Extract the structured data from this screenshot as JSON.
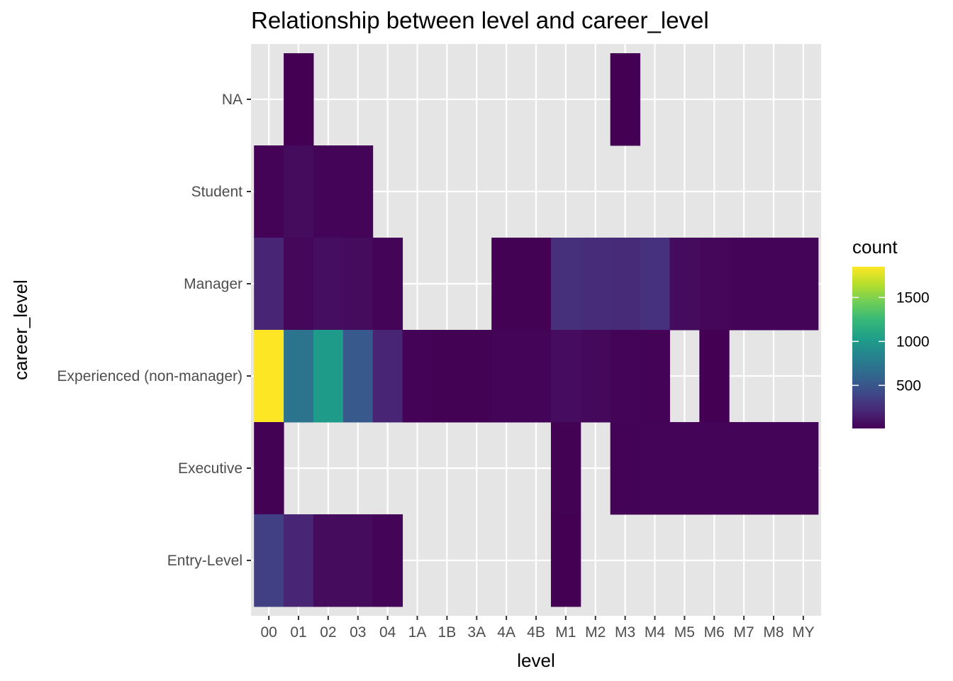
{
  "chart_data": {
    "type": "heatmap",
    "title": "Relationship between level and career_level",
    "xlabel": "level",
    "ylabel": "career_level",
    "x_categories": [
      "00",
      "01",
      "02",
      "03",
      "04",
      "1A",
      "1B",
      "3A",
      "4A",
      "4B",
      "M1",
      "M2",
      "M3",
      "M4",
      "M5",
      "M6",
      "M7",
      "M8",
      "MY"
    ],
    "y_categories": [
      "Entry-Level",
      "Executive",
      "Experienced (non-manager)",
      "Manager",
      "Student",
      "NA"
    ],
    "cells": [
      {
        "x": "01",
        "y": "NA",
        "count": 10
      },
      {
        "x": "M3",
        "y": "NA",
        "count": 10
      },
      {
        "x": "00",
        "y": "Student",
        "count": 20
      },
      {
        "x": "01",
        "y": "Student",
        "count": 60
      },
      {
        "x": "02",
        "y": "Student",
        "count": 30
      },
      {
        "x": "03",
        "y": "Student",
        "count": 25
      },
      {
        "x": "00",
        "y": "Manager",
        "count": 200
      },
      {
        "x": "01",
        "y": "Manager",
        "count": 40
      },
      {
        "x": "02",
        "y": "Manager",
        "count": 80
      },
      {
        "x": "03",
        "y": "Manager",
        "count": 60
      },
      {
        "x": "04",
        "y": "Manager",
        "count": 30
      },
      {
        "x": "4A",
        "y": "Manager",
        "count": 15
      },
      {
        "x": "4B",
        "y": "Manager",
        "count": 15
      },
      {
        "x": "M1",
        "y": "Manager",
        "count": 260
      },
      {
        "x": "M2",
        "y": "Manager",
        "count": 240
      },
      {
        "x": "M3",
        "y": "Manager",
        "count": 230
      },
      {
        "x": "M4",
        "y": "Manager",
        "count": 270
      },
      {
        "x": "M5",
        "y": "Manager",
        "count": 60
      },
      {
        "x": "M6",
        "y": "Manager",
        "count": 40
      },
      {
        "x": "M7",
        "y": "Manager",
        "count": 30
      },
      {
        "x": "M8",
        "y": "Manager",
        "count": 30
      },
      {
        "x": "MY",
        "y": "Manager",
        "count": 25
      },
      {
        "x": "00",
        "y": "Experienced (non-manager)",
        "count": 1850
      },
      {
        "x": "01",
        "y": "Experienced (non-manager)",
        "count": 720
      },
      {
        "x": "02",
        "y": "Experienced (non-manager)",
        "count": 1020
      },
      {
        "x": "03",
        "y": "Experienced (non-manager)",
        "count": 520
      },
      {
        "x": "04",
        "y": "Experienced (non-manager)",
        "count": 200
      },
      {
        "x": "1A",
        "y": "Experienced (non-manager)",
        "count": 20
      },
      {
        "x": "1B",
        "y": "Experienced (non-manager)",
        "count": 15
      },
      {
        "x": "3A",
        "y": "Experienced (non-manager)",
        "count": 15
      },
      {
        "x": "4A",
        "y": "Experienced (non-manager)",
        "count": 25
      },
      {
        "x": "4B",
        "y": "Experienced (non-manager)",
        "count": 25
      },
      {
        "x": "M1",
        "y": "Experienced (non-manager)",
        "count": 70
      },
      {
        "x": "M2",
        "y": "Experienced (non-manager)",
        "count": 50
      },
      {
        "x": "M3",
        "y": "Experienced (non-manager)",
        "count": 30
      },
      {
        "x": "M4",
        "y": "Experienced (non-manager)",
        "count": 20
      },
      {
        "x": "M6",
        "y": "Experienced (non-manager)",
        "count": 10
      },
      {
        "x": "00",
        "y": "Executive",
        "count": 15
      },
      {
        "x": "M1",
        "y": "Executive",
        "count": 15
      },
      {
        "x": "M3",
        "y": "Executive",
        "count": 20
      },
      {
        "x": "M4",
        "y": "Executive",
        "count": 25
      },
      {
        "x": "M5",
        "y": "Executive",
        "count": 25
      },
      {
        "x": "M6",
        "y": "Executive",
        "count": 30
      },
      {
        "x": "M7",
        "y": "Executive",
        "count": 30
      },
      {
        "x": "M8",
        "y": "Executive",
        "count": 30
      },
      {
        "x": "MY",
        "y": "Executive",
        "count": 25
      },
      {
        "x": "00",
        "y": "Entry-Level",
        "count": 360
      },
      {
        "x": "01",
        "y": "Entry-Level",
        "count": 200
      },
      {
        "x": "02",
        "y": "Entry-Level",
        "count": 60
      },
      {
        "x": "03",
        "y": "Entry-Level",
        "count": 60
      },
      {
        "x": "04",
        "y": "Entry-Level",
        "count": 25
      },
      {
        "x": "M1",
        "y": "Entry-Level",
        "count": 10
      }
    ],
    "legend": {
      "title": "count",
      "min": 10,
      "max": 1850,
      "ticks": [
        {
          "value": 500,
          "label": "500"
        },
        {
          "value": 1000,
          "label": "1000"
        },
        {
          "value": 1500,
          "label": "1500"
        }
      ],
      "palette": [
        "#440154",
        "#482878",
        "#3E4A89",
        "#31688E",
        "#26828E",
        "#1F9E89",
        "#35B779",
        "#6DCD59",
        "#B4DE2C",
        "#FDE725"
      ]
    },
    "grid": true,
    "panel_background": "#E5E5E5",
    "gridline_color": "#FFFFFF"
  }
}
